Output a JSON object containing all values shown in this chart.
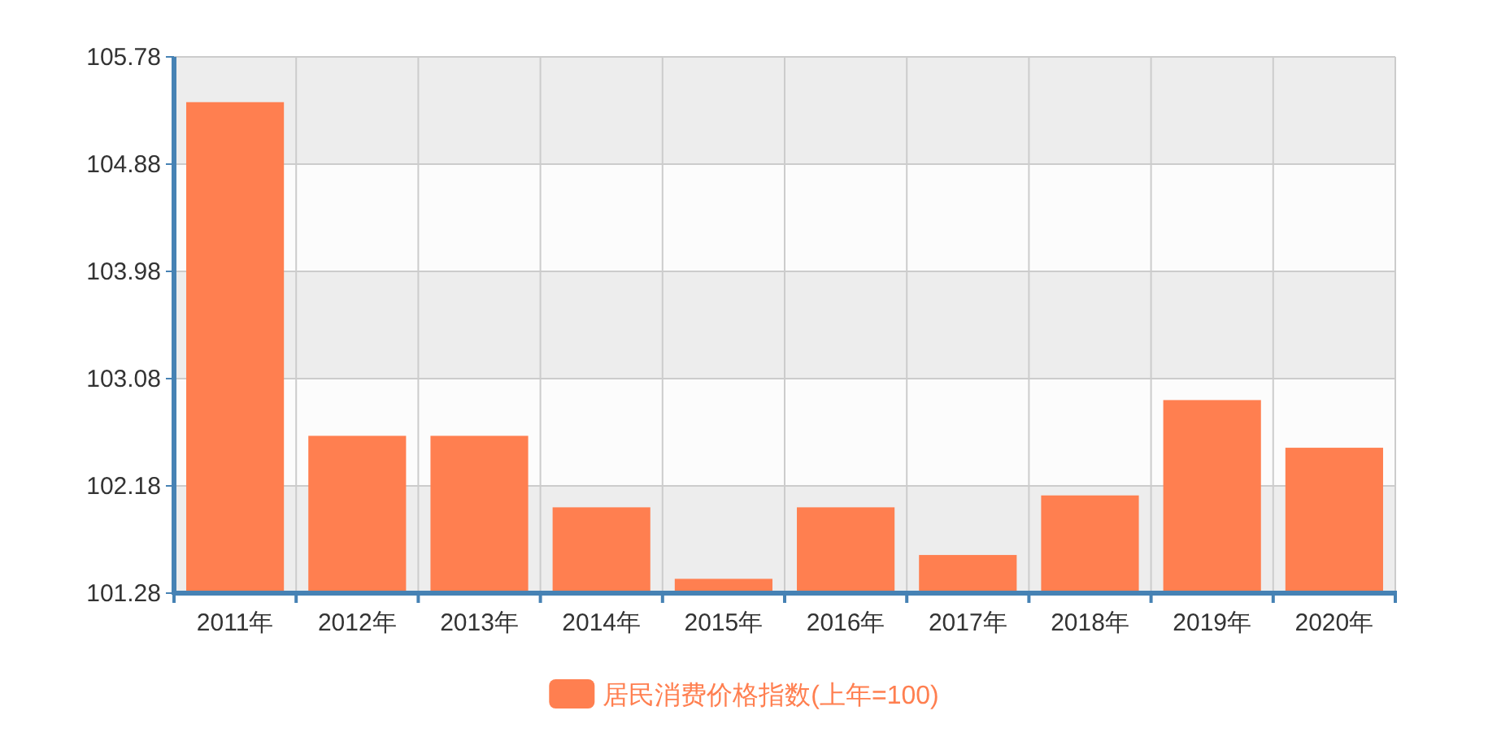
{
  "chart_data": {
    "type": "bar",
    "categories": [
      "2011年",
      "2012年",
      "2013年",
      "2014年",
      "2015年",
      "2016年",
      "2017年",
      "2018年",
      "2019年",
      "2020年"
    ],
    "series": [
      {
        "name": "居民消费价格指数(上年=100)",
        "color": "#ff7f50",
        "values": [
          105.4,
          102.6,
          102.6,
          102.0,
          101.4,
          102.0,
          101.6,
          102.1,
          102.9,
          102.5
        ]
      }
    ],
    "ylim": [
      101.28,
      105.78
    ],
    "yticks": [
      101.28,
      102.18,
      103.08,
      103.98,
      104.88,
      105.78
    ],
    "grid": true,
    "legend": "bottom"
  }
}
